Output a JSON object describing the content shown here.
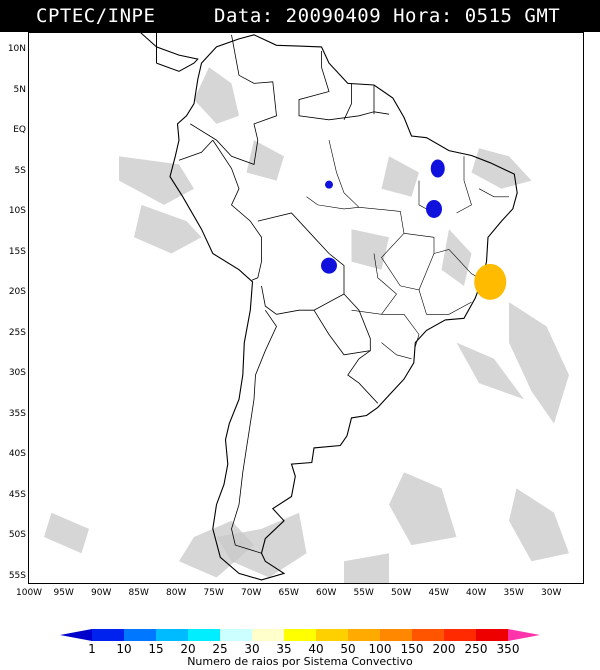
{
  "header": {
    "source": "CPTEC/INPE",
    "info": "Data: 20090409 Hora: 0515 GMT"
  },
  "lat_labels": [
    "10N",
    "5N",
    "EQ",
    "5S",
    "10S",
    "15S",
    "20S",
    "25S",
    "30S",
    "35S",
    "40S",
    "45S",
    "50S",
    "55S"
  ],
  "lon_labels": [
    "100W",
    "95W",
    "90W",
    "85W",
    "80W",
    "75W",
    "70W",
    "65W",
    "60W",
    "55W",
    "50W",
    "45W",
    "40W",
    "35W",
    "30W"
  ],
  "colorbar": {
    "labels": [
      "1",
      "10",
      "15",
      "20",
      "25",
      "30",
      "35",
      "40",
      "50",
      "100",
      "150",
      "200",
      "250",
      "350"
    ],
    "colors": [
      "#0000cc",
      "#0022ee",
      "#0077ff",
      "#00bbff",
      "#00eeff",
      "#ccffff",
      "#ffffcc",
      "#ffff00",
      "#ffd000",
      "#ffaa00",
      "#ff8800",
      "#ff5500",
      "#ff2a00",
      "#ee0000",
      "#ff33aa"
    ],
    "title": "Numero de raios por Sistema Convectivo"
  },
  "map": {
    "land_fill": "#ffffff",
    "border_color": "#000000",
    "cloud_color": "#c8c8c8",
    "systems": [
      {
        "lat": -4.5,
        "lon": -45.5,
        "count_class": "1"
      },
      {
        "lat": -9.5,
        "lon": -46.0,
        "count_class": "1"
      },
      {
        "lat": -6.5,
        "lon": -60.0,
        "count_class": "1"
      },
      {
        "lat": -16.5,
        "lon": -60.0,
        "count_class": "1"
      },
      {
        "lat": -18.5,
        "lon": -38.5,
        "count_class": "50"
      }
    ]
  }
}
